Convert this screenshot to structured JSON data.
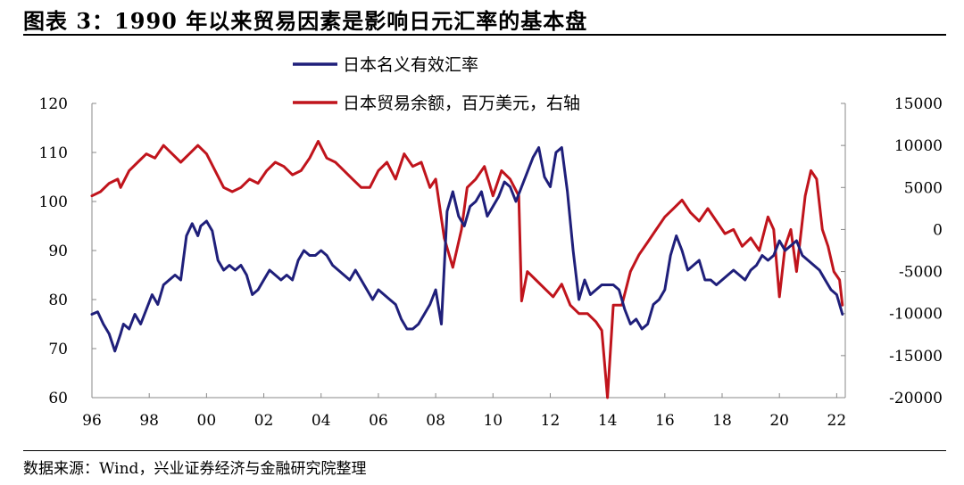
{
  "figure": {
    "title": "图表 3：1990 年以来贸易因素是影响日元汇率的基本盘",
    "source": "数据来源：Wind，兴业证券经济与金融研究院整理"
  },
  "chart_data": {
    "type": "line",
    "title": "",
    "x_tick_labels": [
      "96",
      "98",
      "00",
      "02",
      "04",
      "06",
      "08",
      "10",
      "12",
      "14",
      "16",
      "18",
      "20",
      "22"
    ],
    "x_tick_years": [
      1996,
      1998,
      2000,
      2002,
      2004,
      2006,
      2008,
      2010,
      2012,
      2014,
      2016,
      2018,
      2020,
      2022
    ],
    "xlim": [
      1996,
      2022.3
    ],
    "legend_placement": "top-center",
    "grid": false,
    "left_axis": {
      "ylim": [
        60,
        120
      ],
      "ticks": [
        60,
        70,
        80,
        90,
        100,
        110,
        120
      ]
    },
    "right_axis": {
      "ylim": [
        -20000,
        15000
      ],
      "ticks": [
        -20000,
        -15000,
        -10000,
        -5000,
        0,
        5000,
        10000,
        15000
      ]
    },
    "series": [
      {
        "name": "日本名义有效汇率",
        "axis": "left",
        "color": "#1f1f7a",
        "x": [
          1996.0,
          1996.2,
          1996.4,
          1996.6,
          1996.8,
          1997.0,
          1997.1,
          1997.3,
          1997.5,
          1997.7,
          1997.9,
          1998.1,
          1998.3,
          1998.5,
          1998.7,
          1998.9,
          1999.1,
          1999.3,
          1999.5,
          1999.7,
          1999.8,
          2000.0,
          2000.2,
          2000.4,
          2000.6,
          2000.8,
          2001.0,
          2001.2,
          2001.4,
          2001.6,
          2001.8,
          2002.0,
          2002.2,
          2002.4,
          2002.6,
          2002.8,
          2003.0,
          2003.2,
          2003.4,
          2003.6,
          2003.8,
          2004.0,
          2004.2,
          2004.4,
          2004.6,
          2004.8,
          2005.0,
          2005.2,
          2005.4,
          2005.6,
          2005.8,
          2006.0,
          2006.2,
          2006.4,
          2006.6,
          2006.8,
          2007.0,
          2007.2,
          2007.4,
          2007.6,
          2007.8,
          2008.0,
          2008.2,
          2008.4,
          2008.6,
          2008.8,
          2009.0,
          2009.2,
          2009.4,
          2009.6,
          2009.8,
          2010.0,
          2010.2,
          2010.4,
          2010.6,
          2010.8,
          2011.0,
          2011.2,
          2011.4,
          2011.6,
          2011.8,
          2012.0,
          2012.2,
          2012.4,
          2012.6,
          2012.8,
          2013.0,
          2013.2,
          2013.4,
          2013.6,
          2013.8,
          2014.0,
          2014.2,
          2014.4,
          2014.6,
          2014.8,
          2015.0,
          2015.2,
          2015.4,
          2015.6,
          2015.8,
          2016.0,
          2016.2,
          2016.4,
          2016.6,
          2016.8,
          2017.0,
          2017.2,
          2017.4,
          2017.6,
          2017.8,
          2018.0,
          2018.2,
          2018.4,
          2018.6,
          2018.8,
          2019.0,
          2019.2,
          2019.4,
          2019.6,
          2019.8,
          2020.0,
          2020.2,
          2020.4,
          2020.6,
          2020.8,
          2021.0,
          2021.2,
          2021.4,
          2021.6,
          2021.8,
          2022.0,
          2022.2
        ],
        "values": [
          77,
          77.5,
          75,
          73,
          69.5,
          73,
          75,
          74,
          77,
          75,
          78,
          81,
          79,
          83,
          84,
          85,
          84,
          93,
          95.5,
          93,
          95,
          96,
          94,
          88,
          86,
          87,
          86,
          87,
          85,
          81,
          82,
          84,
          86,
          85,
          84,
          85,
          84,
          88,
          90,
          89,
          89,
          90,
          89,
          87,
          86,
          85,
          84,
          86,
          84,
          82,
          80,
          82,
          81,
          80,
          79,
          76,
          74,
          74,
          75,
          77,
          79,
          82,
          75,
          98,
          102,
          97,
          95,
          99,
          100,
          102,
          97,
          99,
          101,
          104,
          103,
          100,
          103,
          106,
          109,
          111,
          105,
          103,
          110,
          111,
          102,
          90,
          80,
          84,
          81,
          82,
          83,
          83,
          83,
          82,
          78,
          75,
          76,
          74,
          75,
          79,
          80,
          82,
          89,
          93,
          90,
          86,
          87,
          88,
          84,
          84,
          83,
          84,
          85,
          86,
          85,
          84,
          86,
          87,
          89,
          88,
          89,
          92,
          90,
          91,
          92,
          89,
          88,
          87,
          86,
          84,
          82,
          81,
          77
        ]
      },
      {
        "name": "日本贸易余额，百万美元，右轴",
        "axis": "right",
        "color": "#c0141c",
        "x": [
          1996.0,
          1996.3,
          1996.6,
          1996.9,
          1997.0,
          1997.3,
          1997.6,
          1997.9,
          1998.2,
          1998.5,
          1998.8,
          1999.1,
          1999.4,
          1999.7,
          2000.0,
          2000.3,
          2000.6,
          2000.9,
          2001.2,
          2001.5,
          2001.8,
          2002.1,
          2002.4,
          2002.7,
          2003.0,
          2003.3,
          2003.6,
          2003.9,
          2004.2,
          2004.5,
          2004.8,
          2005.1,
          2005.4,
          2005.7,
          2006.0,
          2006.3,
          2006.6,
          2006.9,
          2007.2,
          2007.5,
          2007.8,
          2008.0,
          2008.3,
          2008.6,
          2008.9,
          2009.1,
          2009.4,
          2009.7,
          2010.0,
          2010.3,
          2010.6,
          2010.9,
          2011.0,
          2011.2,
          2011.5,
          2011.8,
          2012.1,
          2012.4,
          2012.7,
          2013.0,
          2013.3,
          2013.6,
          2013.8,
          2014.0,
          2014.2,
          2014.5,
          2014.8,
          2015.1,
          2015.4,
          2015.7,
          2016.0,
          2016.3,
          2016.6,
          2016.9,
          2017.2,
          2017.5,
          2017.8,
          2018.1,
          2018.4,
          2018.7,
          2019.0,
          2019.3,
          2019.6,
          2019.8,
          2020.0,
          2020.2,
          2020.4,
          2020.6,
          2020.9,
          2021.1,
          2021.3,
          2021.5,
          2021.7,
          2021.9,
          2022.1,
          2022.2
        ],
        "values": [
          4000,
          4500,
          5500,
          6000,
          5000,
          7000,
          8000,
          9000,
          8500,
          10000,
          9000,
          8000,
          9000,
          10000,
          9000,
          7000,
          5000,
          4500,
          5000,
          6000,
          5500,
          7000,
          8000,
          7500,
          6500,
          7000,
          8500,
          10500,
          8500,
          8000,
          7000,
          6000,
          5000,
          5000,
          7000,
          8000,
          6000,
          9000,
          7500,
          8000,
          5000,
          6000,
          -1000,
          -4500,
          0,
          5000,
          6000,
          7500,
          4000,
          7000,
          6000,
          4000,
          -8500,
          -5000,
          -6000,
          -7000,
          -8000,
          -6500,
          -9000,
          -10000,
          -10000,
          -11000,
          -12000,
          -20000,
          -9000,
          -9000,
          -5000,
          -3000,
          -1500,
          0,
          1500,
          2500,
          3500,
          2000,
          1000,
          2500,
          1000,
          -500,
          0,
          -2000,
          -1000,
          -2500,
          1500,
          0,
          -8000,
          -2000,
          0,
          -5000,
          4000,
          7000,
          6000,
          0,
          -2000,
          -5000,
          -6000,
          -9000
        ]
      }
    ]
  }
}
